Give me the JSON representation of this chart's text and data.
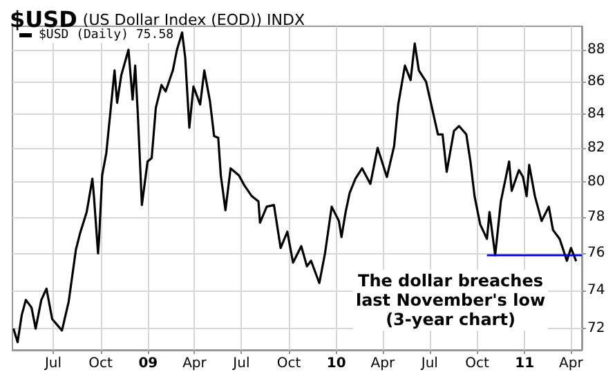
{
  "chart_data": {
    "type": "line",
    "title": "$USD",
    "subtitle": "(US Dollar Index (EOD)) INDX",
    "annotations": [
      "The dollar breaches\nlast November's low\n(3-year chart)"
    ],
    "x": [
      "2008-04-15",
      "2008-04-23",
      "2008-05-01",
      "2008-05-09",
      "2008-05-20",
      "2008-05-28",
      "2008-06-08",
      "2008-06-18",
      "2008-06-29",
      "2008-07-18",
      "2008-07-31",
      "2008-08-14",
      "2008-08-22",
      "2008-09-04",
      "2008-09-15",
      "2008-09-18",
      "2008-09-26",
      "2008-09-28",
      "2008-10-04",
      "2008-10-12",
      "2008-10-28",
      "2008-11-02",
      "2008-11-10",
      "2008-11-24",
      "2008-12-02",
      "2008-12-07",
      "2008-12-12",
      "2008-12-20",
      "2008-12-31",
      "2009-01-08",
      "2009-01-16",
      "2009-01-27",
      "2009-02-04",
      "2009-02-18",
      "2009-02-26",
      "2009-03-08",
      "2009-03-14",
      "2009-03-22",
      "2009-03-30",
      "2009-04-12",
      "2009-04-20",
      "2009-05-01",
      "2009-05-09",
      "2009-05-17",
      "2009-05-22",
      "2009-05-31",
      "2009-06-10",
      "2009-06-26",
      "2009-07-07",
      "2009-07-21",
      "2009-08-03",
      "2009-08-06",
      "2009-08-19",
      "2009-09-02",
      "2009-09-15",
      "2009-09-28",
      "2009-10-09",
      "2009-10-25",
      "2009-11-05",
      "2009-11-13",
      "2009-11-29",
      "2009-12-10",
      "2009-12-23",
      "2010-01-06",
      "2010-01-11",
      "2010-01-19",
      "2010-01-27",
      "2010-02-07",
      "2010-02-20",
      "2010-03-08",
      "2010-03-22",
      "2010-04-09",
      "2010-04-23",
      "2010-05-01",
      "2010-05-14",
      "2010-05-25",
      "2010-06-02",
      "2010-06-10",
      "2010-06-24",
      "2010-07-04",
      "2010-07-17",
      "2010-07-26",
      "2010-08-03",
      "2010-08-17",
      "2010-08-27",
      "2010-09-10",
      "2010-09-18",
      "2010-09-26",
      "2010-10-07",
      "2010-10-20",
      "2010-10-25",
      "2010-11-05",
      "2010-11-16",
      "2010-12-02",
      "2010-12-07",
      "2010-12-21",
      "2010-12-29",
      "2011-01-05",
      "2011-01-10",
      "2011-01-21",
      "2011-02-03",
      "2011-02-17",
      "2011-02-25",
      "2011-03-10",
      "2011-03-24",
      "2011-04-01",
      "2011-04-11"
    ],
    "series": [
      {
        "name": "$USD (Daily) 75.58",
        "color": "#000000",
        "values": [
          72.0,
          71.3,
          72.7,
          73.5,
          73.1,
          72.0,
          73.5,
          74.1,
          72.5,
          71.9,
          73.4,
          76.2,
          77.1,
          78.3,
          80.2,
          79.2,
          76.0,
          76.8,
          80.4,
          81.7,
          86.7,
          84.7,
          86.4,
          88.0,
          84.9,
          87.0,
          84.1,
          78.7,
          81.2,
          81.4,
          84.4,
          85.8,
          85.4,
          86.7,
          88.0,
          89.1,
          87.5,
          83.2,
          85.7,
          84.6,
          86.7,
          84.8,
          82.7,
          82.6,
          80.4,
          78.4,
          80.8,
          80.4,
          79.8,
          79.2,
          78.9,
          77.7,
          78.6,
          78.7,
          76.3,
          77.2,
          75.5,
          76.4,
          75.3,
          75.6,
          74.4,
          76.0,
          78.6,
          77.8,
          76.9,
          78.3,
          79.4,
          80.2,
          80.8,
          79.9,
          82.0,
          80.3,
          82.1,
          84.6,
          87.0,
          86.1,
          88.4,
          86.7,
          86.0,
          84.6,
          82.8,
          82.8,
          80.6,
          83.0,
          83.3,
          82.8,
          81.2,
          79.2,
          77.6,
          76.8,
          78.3,
          75.9,
          78.9,
          81.2,
          79.5,
          80.7,
          80.3,
          79.2,
          81.0,
          79.2,
          77.8,
          78.6,
          77.3,
          76.8,
          75.6,
          76.3,
          75.58
        ]
      },
      {
        "type": "line",
        "color": "#0000cc",
        "x": [
          "2010-10-20",
          "2011-04-22"
        ],
        "values": [
          75.9,
          75.9
        ]
      }
    ],
    "xlim": [
      "2008-04-13",
      "2011-04-22"
    ],
    "xticks": [
      {
        "value": "2008-07-01",
        "label": "Jul"
      },
      {
        "value": "2008-10-01",
        "label": "Oct"
      },
      {
        "value": "2009-01-01",
        "label": "09"
      },
      {
        "value": "2009-04-01",
        "label": "Apr"
      },
      {
        "value": "2009-07-01",
        "label": "Jul"
      },
      {
        "value": "2009-10-01",
        "label": "Oct"
      },
      {
        "value": "2010-01-01",
        "label": "10"
      },
      {
        "value": "2010-04-01",
        "label": "Apr"
      },
      {
        "value": "2010-07-01",
        "label": "Jul"
      },
      {
        "value": "2010-10-01",
        "label": "Oct"
      },
      {
        "value": "2011-01-01",
        "label": "11"
      },
      {
        "value": "2011-04-01",
        "label": "Apr"
      }
    ],
    "ylim": [
      70.9,
      89.5
    ],
    "yticks": [
      72,
      74,
      76,
      78,
      80,
      82,
      84,
      86,
      88
    ],
    "log": true,
    "grid": true,
    "legend": "top left"
  }
}
